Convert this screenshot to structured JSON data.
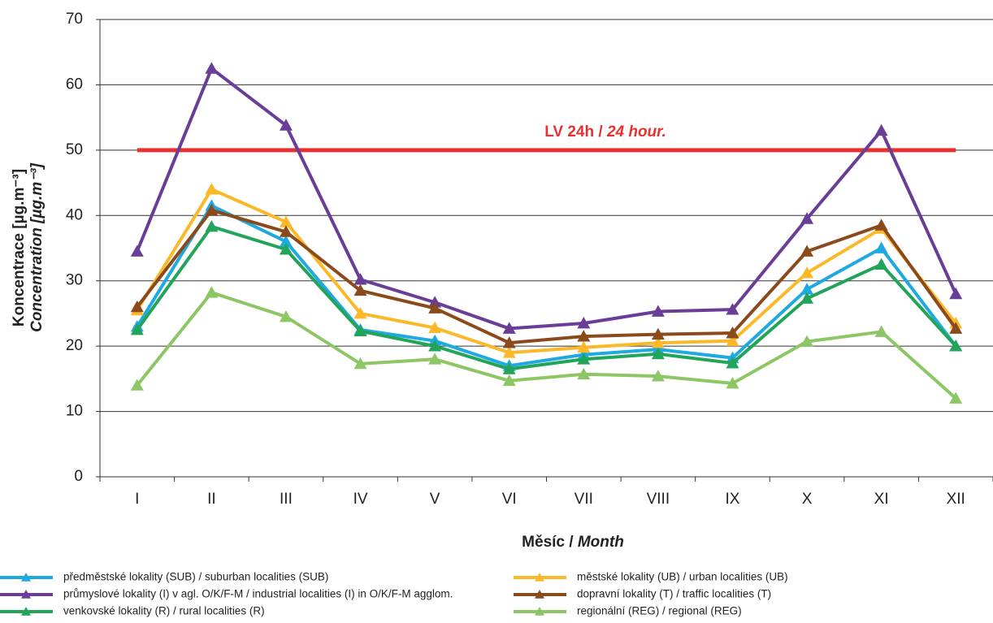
{
  "chart_data": {
    "type": "line",
    "y_label": "Koncentrace [µg.m⁻³]",
    "y_label_en": "Concentration [µg.m⁻³]",
    "x_label": "Měsíc /",
    "x_label_en": "Month",
    "categories": [
      "I",
      "II",
      "III",
      "IV",
      "V",
      "VI",
      "VII",
      "VIII",
      "IX",
      "X",
      "XI",
      "XII"
    ],
    "ylim": [
      0,
      70
    ],
    "yticks": [
      0,
      10,
      20,
      30,
      40,
      50,
      60,
      70
    ],
    "grid": true,
    "limit": {
      "value": 50,
      "color": "#e8312f",
      "label": "LV 24h /",
      "label_en": "24 hour."
    },
    "series": [
      {
        "name": "předměstské lokality (SUB) / suburban localities (SUB)",
        "color": "#1fa9e1",
        "values": [
          23,
          41.5,
          36,
          22.5,
          20.8,
          17,
          18.7,
          19.5,
          18.2,
          28.7,
          35,
          20
        ]
      },
      {
        "name": "městské lokality (UB) / urban localities (UB)",
        "color": "#fbb829",
        "values": [
          25.5,
          44,
          39,
          25,
          22.8,
          19,
          19.8,
          20.5,
          20.8,
          31.2,
          38,
          23.5
        ]
      },
      {
        "name": "průmyslové lokality (I) v agl. O/K/F-M / industrial localities (I) in O/K/F-M agglom.",
        "color": "#6a3d96",
        "values": [
          34.5,
          62.5,
          53.8,
          30.2,
          26.7,
          22.7,
          23.5,
          25.3,
          25.6,
          39.5,
          53,
          28
        ]
      },
      {
        "name": "dopravní lokality (T) / traffic localities (T)",
        "color": "#8b4a1c",
        "values": [
          26,
          40.8,
          37.5,
          28.5,
          25.8,
          20.5,
          21.5,
          21.8,
          22,
          34.5,
          38.5,
          22.7
        ]
      },
      {
        "name": "venkovské lokality (R) / rural localities (R)",
        "color": "#22a55a",
        "values": [
          22.5,
          38.3,
          34.8,
          22.3,
          20,
          16.5,
          18,
          18.8,
          17.4,
          27.3,
          32.5,
          20
        ]
      },
      {
        "name": "regionální (REG) / regional (REG)",
        "color": "#8cc665",
        "values": [
          14,
          28.2,
          24.5,
          17.3,
          18,
          14.7,
          15.7,
          15.4,
          14.3,
          20.7,
          22.2,
          12
        ]
      }
    ]
  }
}
